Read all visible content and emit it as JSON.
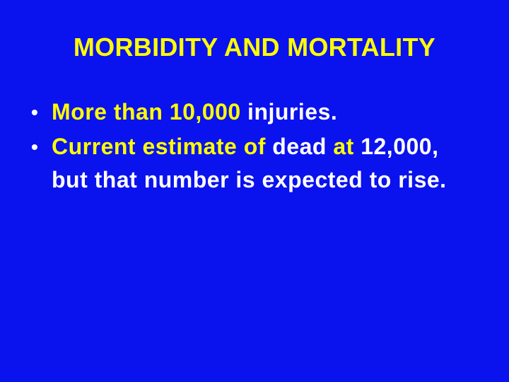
{
  "slide": {
    "title": "MORBIDITY AND MORTALITY",
    "colors": {
      "background": "#0a12ee",
      "highlight": "#ffff00",
      "text": "#ffffff"
    },
    "bullets": [
      {
        "segments": [
          {
            "text": "More than 10,000",
            "color": "yellow"
          },
          {
            "text": " injuries.",
            "color": "white"
          }
        ]
      },
      {
        "segments": [
          {
            "text": "Current estimate of",
            "color": "yellow"
          },
          {
            "text": " dead ",
            "color": "white"
          },
          {
            "text": "at",
            "color": "yellow"
          },
          {
            "text": " 12,000, but that number is expected to rise.",
            "color": "white"
          }
        ]
      }
    ]
  }
}
